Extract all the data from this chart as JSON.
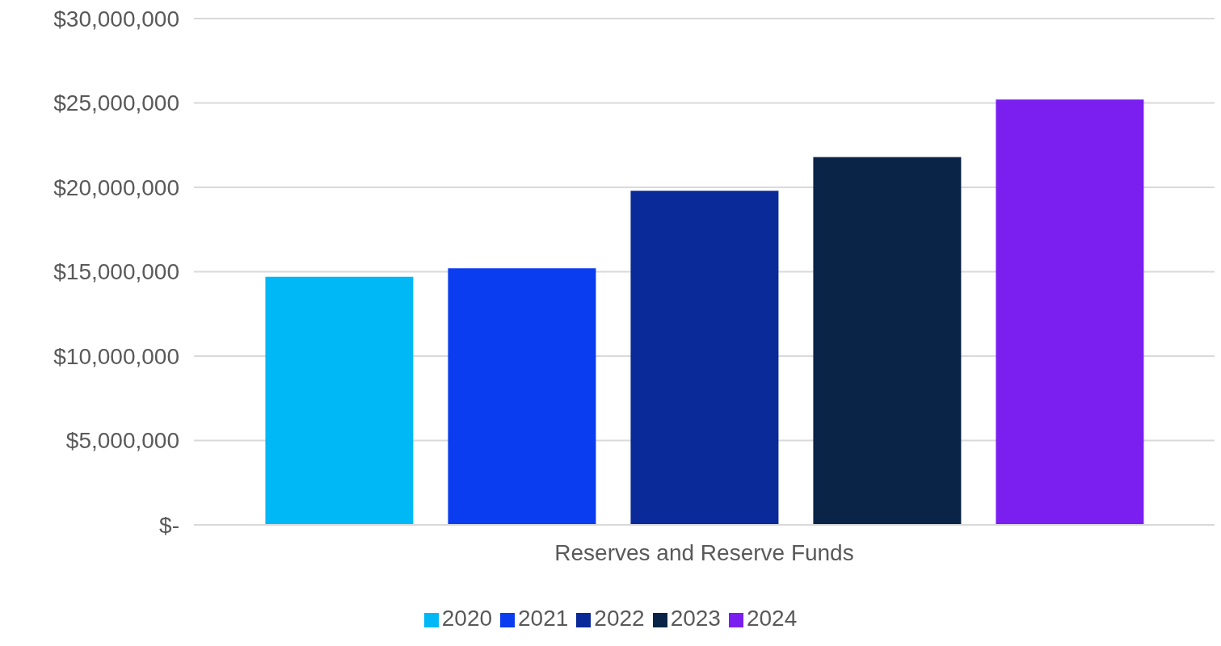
{
  "chart_data": {
    "type": "bar",
    "categories": [
      "Reserves and Reserve Funds"
    ],
    "series": [
      {
        "name": "2020",
        "color": "#00b8f5",
        "values": [
          14700000
        ]
      },
      {
        "name": "2021",
        "color": "#0a3cf0",
        "values": [
          15200000
        ]
      },
      {
        "name": "2022",
        "color": "#0a2a9a",
        "values": [
          19800000
        ]
      },
      {
        "name": "2023",
        "color": "#0a2448",
        "values": [
          21800000
        ]
      },
      {
        "name": "2024",
        "color": "#7a1ff0",
        "values": [
          25200000
        ]
      }
    ],
    "ylim": [
      0,
      30000000
    ],
    "yticks": [
      {
        "value": 0,
        "label": "$-"
      },
      {
        "value": 5000000,
        "label": "$5,000,000"
      },
      {
        "value": 10000000,
        "label": "$10,000,000"
      },
      {
        "value": 15000000,
        "label": "$15,000,000"
      },
      {
        "value": 20000000,
        "label": "$20,000,000"
      },
      {
        "value": 25000000,
        "label": "$25,000,000"
      },
      {
        "value": 30000000,
        "label": "$30,000,000"
      }
    ],
    "grid": "y",
    "legend": "bottom"
  }
}
